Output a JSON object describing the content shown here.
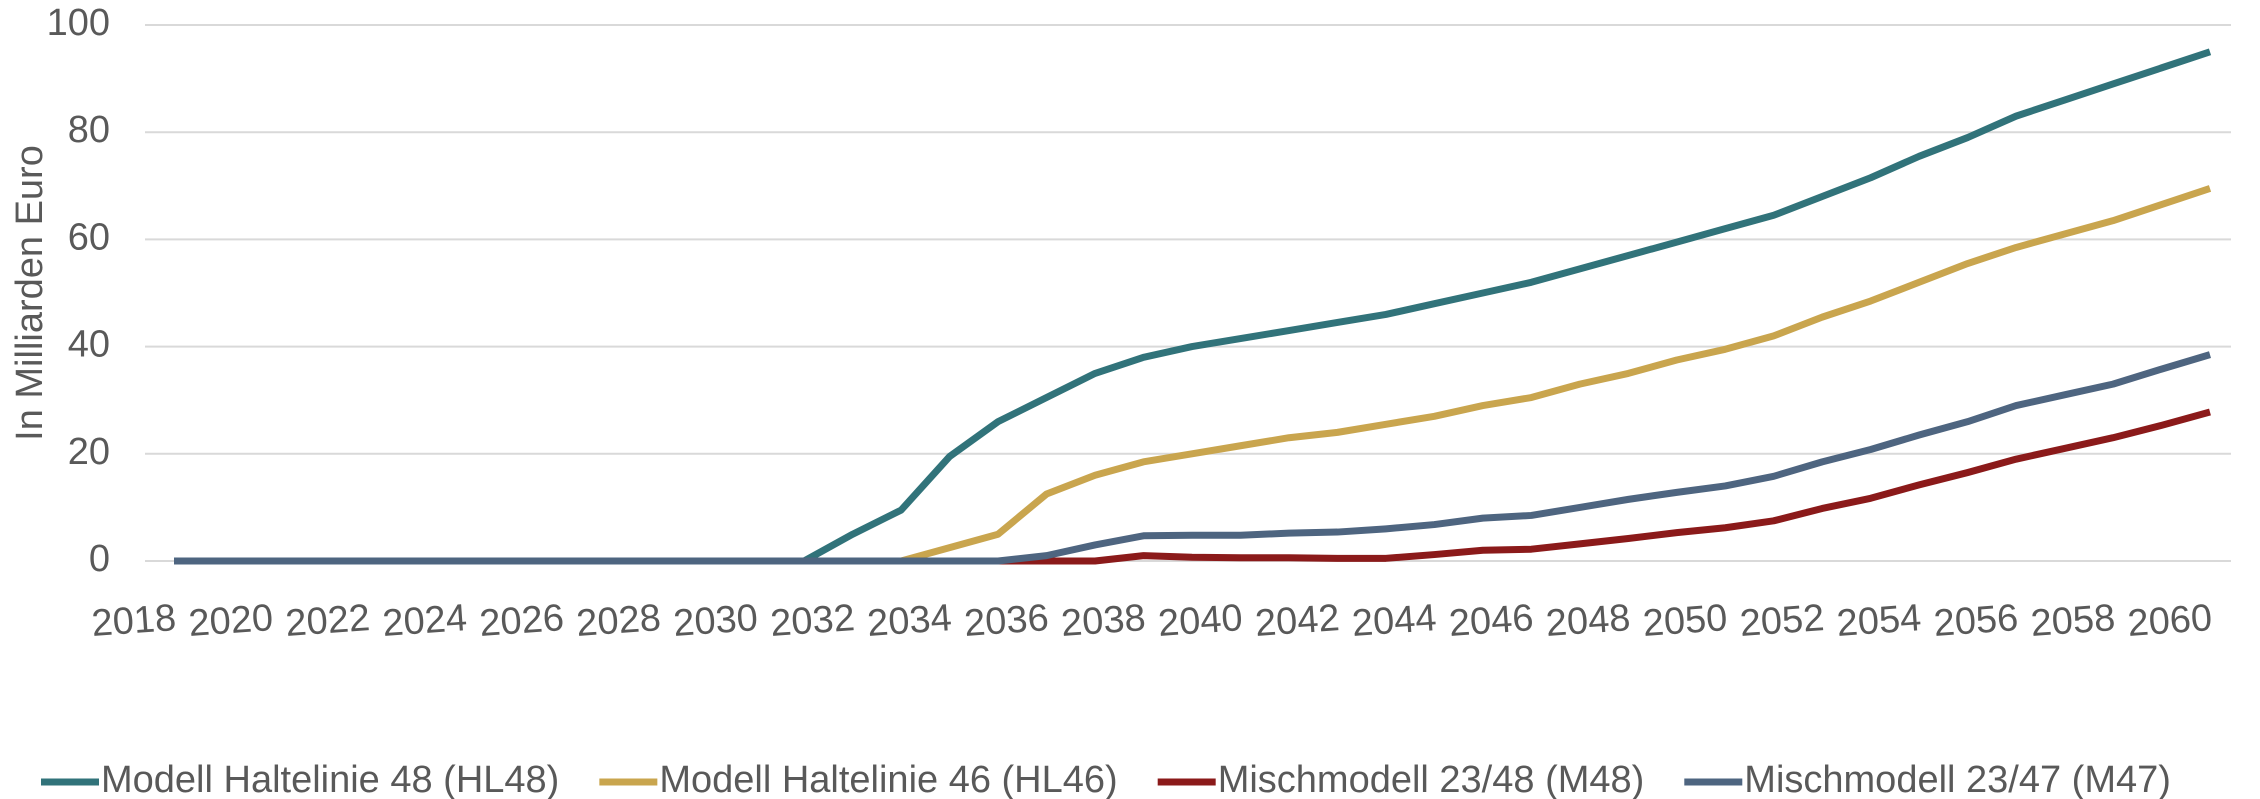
{
  "chart_data": {
    "type": "line",
    "y_label": "In Milliarden Euro",
    "x": [
      2018,
      2019,
      2020,
      2021,
      2022,
      2023,
      2024,
      2025,
      2026,
      2027,
      2028,
      2029,
      2030,
      2031,
      2032,
      2033,
      2034,
      2035,
      2036,
      2037,
      2038,
      2039,
      2040,
      2041,
      2042,
      2043,
      2044,
      2045,
      2046,
      2047,
      2048,
      2049,
      2050,
      2051,
      2052,
      2053,
      2054,
      2055,
      2056,
      2057,
      2058,
      2059,
      2060
    ],
    "xlim": [
      2018,
      2060
    ],
    "xticks": [
      2018,
      2020,
      2022,
      2024,
      2026,
      2028,
      2030,
      2032,
      2034,
      2036,
      2038,
      2040,
      2042,
      2044,
      2046,
      2048,
      2050,
      2052,
      2054,
      2056,
      2058,
      2060
    ],
    "ylim": [
      0,
      100
    ],
    "yticks": [
      0,
      20,
      40,
      60,
      80,
      100
    ],
    "grid": true,
    "legend": "bottom",
    "series": [
      {
        "name": "Modell Haltelinie 48 (HL48)",
        "color": "#31737a",
        "values": [
          0,
          0,
          0,
          0,
          0,
          0,
          0,
          0,
          0,
          0,
          0,
          0,
          0,
          0,
          5,
          9.5,
          19.5,
          26,
          30.5,
          35,
          38,
          40,
          41.5,
          43,
          44.5,
          46,
          48,
          50,
          52,
          54.5,
          57,
          59.5,
          62,
          64.5,
          68,
          71.5,
          75.5,
          79,
          83,
          86,
          89,
          92,
          95
        ]
      },
      {
        "name": "Modell Haltelinie 46 (HL46)",
        "color": "#c9a54e",
        "values": [
          0,
          0,
          0,
          0,
          0,
          0,
          0,
          0,
          0,
          0,
          0,
          0,
          0,
          0,
          0,
          0,
          2.5,
          5,
          12.5,
          16,
          18.5,
          20,
          21.5,
          23,
          24,
          25.5,
          27,
          29,
          30.5,
          33,
          35,
          37.5,
          39.5,
          42,
          45.5,
          48.5,
          52,
          55.5,
          58.5,
          61,
          63.5,
          66.5,
          69.5
        ]
      },
      {
        "name": "Mischmodell 23/48 (M48)",
        "color": "#8b1a1a",
        "values": [
          0,
          0,
          0,
          0,
          0,
          0,
          0,
          0,
          0,
          0,
          0,
          0,
          0,
          0,
          0,
          0,
          0,
          0,
          0,
          0,
          1,
          0.7,
          0.6,
          0.6,
          0.5,
          0.5,
          1.2,
          2,
          2.2,
          3.2,
          4.2,
          5.3,
          6.2,
          7.5,
          9.8,
          11.7,
          14.2,
          16.5,
          19,
          21,
          23,
          25.3,
          27.8
        ]
      },
      {
        "name": "Mischmodell 23/47 (M47)",
        "color": "#4e6580",
        "values": [
          0,
          0,
          0,
          0,
          0,
          0,
          0,
          0,
          0,
          0,
          0,
          0,
          0,
          0,
          0,
          0,
          0,
          0,
          1,
          3,
          4.7,
          4.8,
          4.8,
          5.2,
          5.4,
          6,
          6.8,
          8,
          8.5,
          10,
          11.5,
          12.8,
          14,
          15.8,
          18.5,
          20.8,
          23.5,
          26,
          29,
          31,
          33,
          35.8,
          38.5
        ]
      }
    ]
  }
}
